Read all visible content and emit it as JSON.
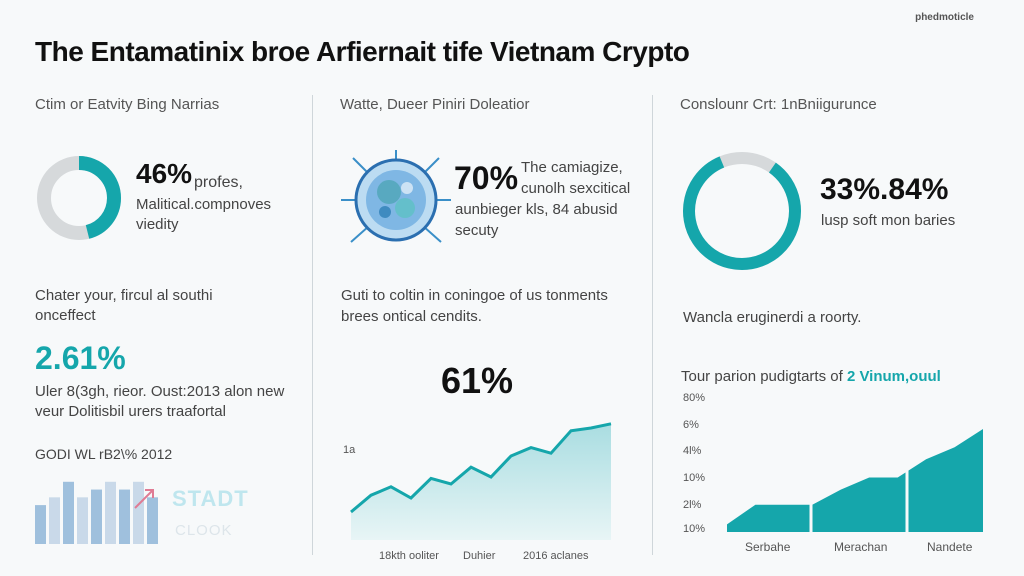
{
  "header": {
    "brand": "phedmoticle",
    "title": "The Entamatinix broe Arfiernait tife Vietnam Crypto"
  },
  "colors": {
    "accent": "#15a6ab",
    "track": "#d6d9db",
    "bars_light": "#c9d9e9",
    "bars_dark": "#9fc0dd"
  },
  "col1": {
    "heading": "Ctim or Eatvity Bing Narrias",
    "donut_pct": "46%",
    "donut_line1": "profes,",
    "donut_line2": "Malitical.compnoves",
    "donut_line3": "viedity",
    "sub_line1": "Chater your, fircul al southi",
    "sub_line2": "onceffect",
    "stat": "2.61%",
    "stat_line1": "Uler 8(3gh, rieor. Oust:2013 alon new",
    "stat_line2": "veur Dolitisbil urers traafortal",
    "footer": "GODI WL rB2\\% 2012",
    "ghost1": "STADT",
    "ghost2": "CLOOK"
  },
  "col2": {
    "heading": "Watte, Dueer Piniri Doleatior",
    "pct": "70%",
    "line1": "The camiagize,",
    "line2": "cunolh sexcitical",
    "line3": "aunbieger kls, 84 abusid",
    "line4": "secuty",
    "sub_line1": "Guti to coltin in coningoe of us tonments",
    "sub_line2": "brees ontical cendits.",
    "stat": "61%"
  },
  "col3": {
    "heading": "Conslounr Crt: 1nBniigurunce",
    "donut_pct": "33%.84%",
    "donut_caption": "lusp soft mon baries",
    "line": "Wancla eruginerdi a roorty.",
    "chart_heading_a": "Tour parion pudigtarts of ",
    "chart_heading_b": "2 Vinum,ouul"
  },
  "chart_data": [
    {
      "type": "pie",
      "values": [
        46,
        54
      ],
      "annotations": [
        "46%"
      ]
    },
    {
      "type": "bar",
      "values": [
        5,
        6,
        8,
        6,
        7,
        8,
        7,
        8,
        6
      ]
    },
    {
      "type": "area",
      "x_tick_labels": [
        "18kth ooliter",
        "Duhier",
        "2016 aclanes"
      ],
      "y_tick_labels": [
        "1a"
      ],
      "values": [
        20,
        32,
        38,
        30,
        44,
        40,
        52,
        45,
        60,
        66,
        62,
        78,
        80,
        83
      ],
      "annotations": [
        "61%"
      ]
    },
    {
      "type": "pie",
      "values": [
        84,
        16
      ],
      "annotations": [
        "33%.84%"
      ]
    },
    {
      "type": "area",
      "y_tick_labels": [
        "80%",
        "6%",
        "4l%",
        "10%",
        "2l%",
        "10%"
      ],
      "x_tick_labels": [
        "Serbahe",
        "Merachan",
        "Nandete"
      ],
      "values": [
        5,
        18,
        18,
        18,
        28,
        36,
        36,
        48,
        56,
        68
      ]
    }
  ]
}
